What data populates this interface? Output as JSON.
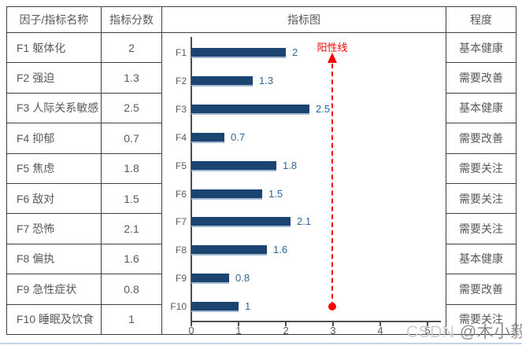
{
  "table": {
    "headers": [
      "因子/指标名称",
      "指标分数",
      "指标图",
      "程度"
    ],
    "rows": [
      {
        "name": "F1 躯体化",
        "score": "2",
        "level": "基本健康"
      },
      {
        "name": "F2 强迫",
        "score": "1.3",
        "level": "需要改善"
      },
      {
        "name": "F3 人际关系敏感",
        "score": "2.5",
        "level": "基本健康"
      },
      {
        "name": "F4 抑郁",
        "score": "0.7",
        "level": "需要改善"
      },
      {
        "name": "F5 焦虑",
        "score": "1.8",
        "level": "需要关注"
      },
      {
        "name": "F6 敌对",
        "score": "1.5",
        "level": "需要关注"
      },
      {
        "name": "F7 恐怖",
        "score": "2.1",
        "level": "需要关注"
      },
      {
        "name": "F8 偏执",
        "score": "1.6",
        "level": "基本健康"
      },
      {
        "name": "F9 急性症状",
        "score": "0.8",
        "level": "需要改善"
      },
      {
        "name": "F10 睡眠及饮食",
        "score": "1",
        "level": "需要关注"
      }
    ]
  },
  "chart_data": {
    "type": "bar",
    "orientation": "horizontal",
    "title": "指标图",
    "categories": [
      "F1",
      "F2",
      "F3",
      "F4",
      "F5",
      "F6",
      "F7",
      "F8",
      "F9",
      "F10"
    ],
    "values": [
      2,
      1.3,
      2.5,
      0.7,
      1.8,
      1.5,
      2.1,
      1.6,
      0.8,
      1
    ],
    "value_labels": [
      "2",
      "1.3",
      "2.5",
      "0.7",
      "1.8",
      "1.5",
      "2.1",
      "1.6",
      "0.8",
      "1"
    ],
    "xlim": [
      0,
      5
    ],
    "x_ticks": [
      "0",
      "1",
      "2",
      "3",
      "4",
      "5"
    ],
    "grid": false,
    "legend": "none",
    "reference_line": {
      "x": 3,
      "label": "阳性线",
      "style": "vertical-dashed, arrow at top, dot marker at bottom",
      "color": "#ff0000"
    },
    "bar_color": "#1b4470",
    "value_label_color": "#2d669e"
  },
  "watermark": {
    "csdn": "CSDN",
    "author": "@木小毅"
  },
  "colors": {
    "table_border": "#3f3f3f",
    "text": "#595959",
    "axis": "#4d4d4d",
    "bar": "#1b4470",
    "bar_edge": "#9fb8d1",
    "value_label": "#2d669e",
    "reference_red": "#ff0000",
    "bottom_rule": "#c3d4e7",
    "watermark_light": "#cdcdcd",
    "watermark_dark": "#8f8f8f"
  }
}
